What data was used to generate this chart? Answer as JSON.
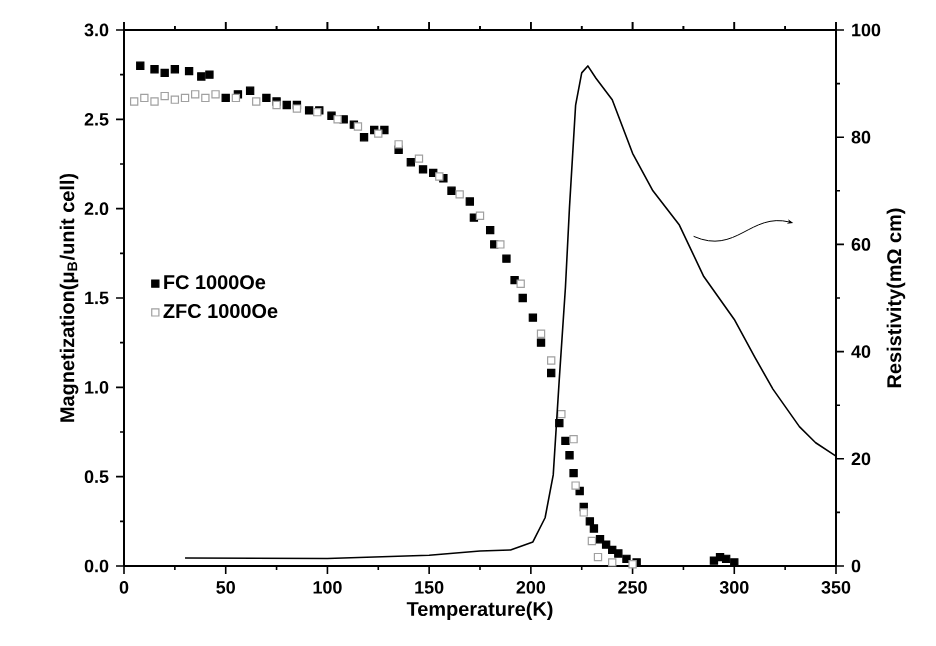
{
  "chart_data": {
    "type": "scatter",
    "xlabel": "Temperature(K)",
    "ylabel": "Magnetization(μ$_{B}$/unit cell)",
    "y2label": "Resistivity(mΩ cm)",
    "xlim": [
      0,
      350
    ],
    "xticks": [
      0,
      50,
      100,
      150,
      200,
      250,
      300,
      350
    ],
    "ylim": [
      0,
      3.0
    ],
    "yticks": [
      {
        "value": 0,
        "label": "0.0"
      },
      {
        "value": 0.5,
        "label": "0.5"
      },
      {
        "value": 1.0,
        "label": "1.0"
      },
      {
        "value": 1.5,
        "label": "1.5"
      },
      {
        "value": 2.0,
        "label": "2.0"
      },
      {
        "value": 2.5,
        "label": "2.5"
      },
      {
        "value": 3.0,
        "label": "3.0"
      }
    ],
    "y2lim": [
      0,
      100
    ],
    "y2ticks": [
      0,
      20,
      40,
      60,
      80,
      100
    ],
    "legend": "left",
    "marker": "square",
    "grid": false,
    "series": [
      {
        "name": "FC    1000Oe",
        "color": "#000000",
        "x": [
          8,
          15,
          20,
          25,
          32,
          38,
          42,
          50,
          56,
          62,
          70,
          75,
          80,
          85,
          91,
          96,
          102,
          108,
          113,
          118,
          123,
          128,
          135,
          141,
          147,
          152,
          157,
          161,
          170,
          172,
          180,
          182,
          188,
          192,
          196,
          201,
          205,
          210,
          214,
          217,
          219,
          221,
          224,
          226,
          229,
          231,
          234,
          237,
          240,
          243,
          247,
          252,
          290,
          293,
          296,
          300
        ],
        "values": [
          2.8,
          2.78,
          2.76,
          2.78,
          2.77,
          2.74,
          2.75,
          2.62,
          2.64,
          2.66,
          2.62,
          2.6,
          2.58,
          2.58,
          2.55,
          2.55,
          2.52,
          2.5,
          2.47,
          2.4,
          2.44,
          2.44,
          2.33,
          2.26,
          2.22,
          2.2,
          2.17,
          2.1,
          2.04,
          1.95,
          1.88,
          1.8,
          1.72,
          1.6,
          1.5,
          1.39,
          1.25,
          1.08,
          0.8,
          0.7,
          0.62,
          0.52,
          0.42,
          0.33,
          0.25,
          0.21,
          0.15,
          0.12,
          0.09,
          0.07,
          0.04,
          0.02,
          0.03,
          0.05,
          0.04,
          0.02
        ]
      },
      {
        "name": "ZFC  1000Oe",
        "color": "#a0a0a0",
        "x": [
          5,
          10,
          15,
          20,
          25,
          30,
          35,
          40,
          45,
          55,
          65,
          75,
          85,
          95,
          105,
          115,
          125,
          135,
          145,
          155,
          165,
          175,
          185,
          195,
          205,
          210,
          215,
          221,
          222,
          226,
          230,
          233,
          240,
          250
        ],
        "values": [
          2.6,
          2.62,
          2.6,
          2.63,
          2.61,
          2.62,
          2.64,
          2.62,
          2.64,
          2.62,
          2.6,
          2.58,
          2.56,
          2.54,
          2.5,
          2.46,
          2.42,
          2.36,
          2.28,
          2.18,
          2.08,
          1.96,
          1.8,
          1.58,
          1.3,
          1.15,
          0.85,
          0.71,
          0.45,
          0.3,
          0.14,
          0.05,
          0.02,
          0.01
        ]
      },
      {
        "type": "line",
        "axis": "y2",
        "color": "#000000",
        "marker": "none",
        "x": [
          30,
          100,
          150,
          175,
          190,
          201,
          207,
          211,
          214,
          217,
          219,
          222,
          225,
          228,
          232,
          240,
          250,
          260,
          273,
          285,
          300,
          310,
          319,
          332,
          340,
          350
        ],
        "values": [
          1.5,
          1.4,
          2,
          2.8,
          3,
          4.5,
          9,
          17,
          35,
          52,
          67,
          86,
          92,
          93.3,
          91,
          87,
          77,
          70,
          63.6,
          54,
          46,
          39,
          33,
          26,
          23,
          20.5
        ]
      }
    ]
  }
}
